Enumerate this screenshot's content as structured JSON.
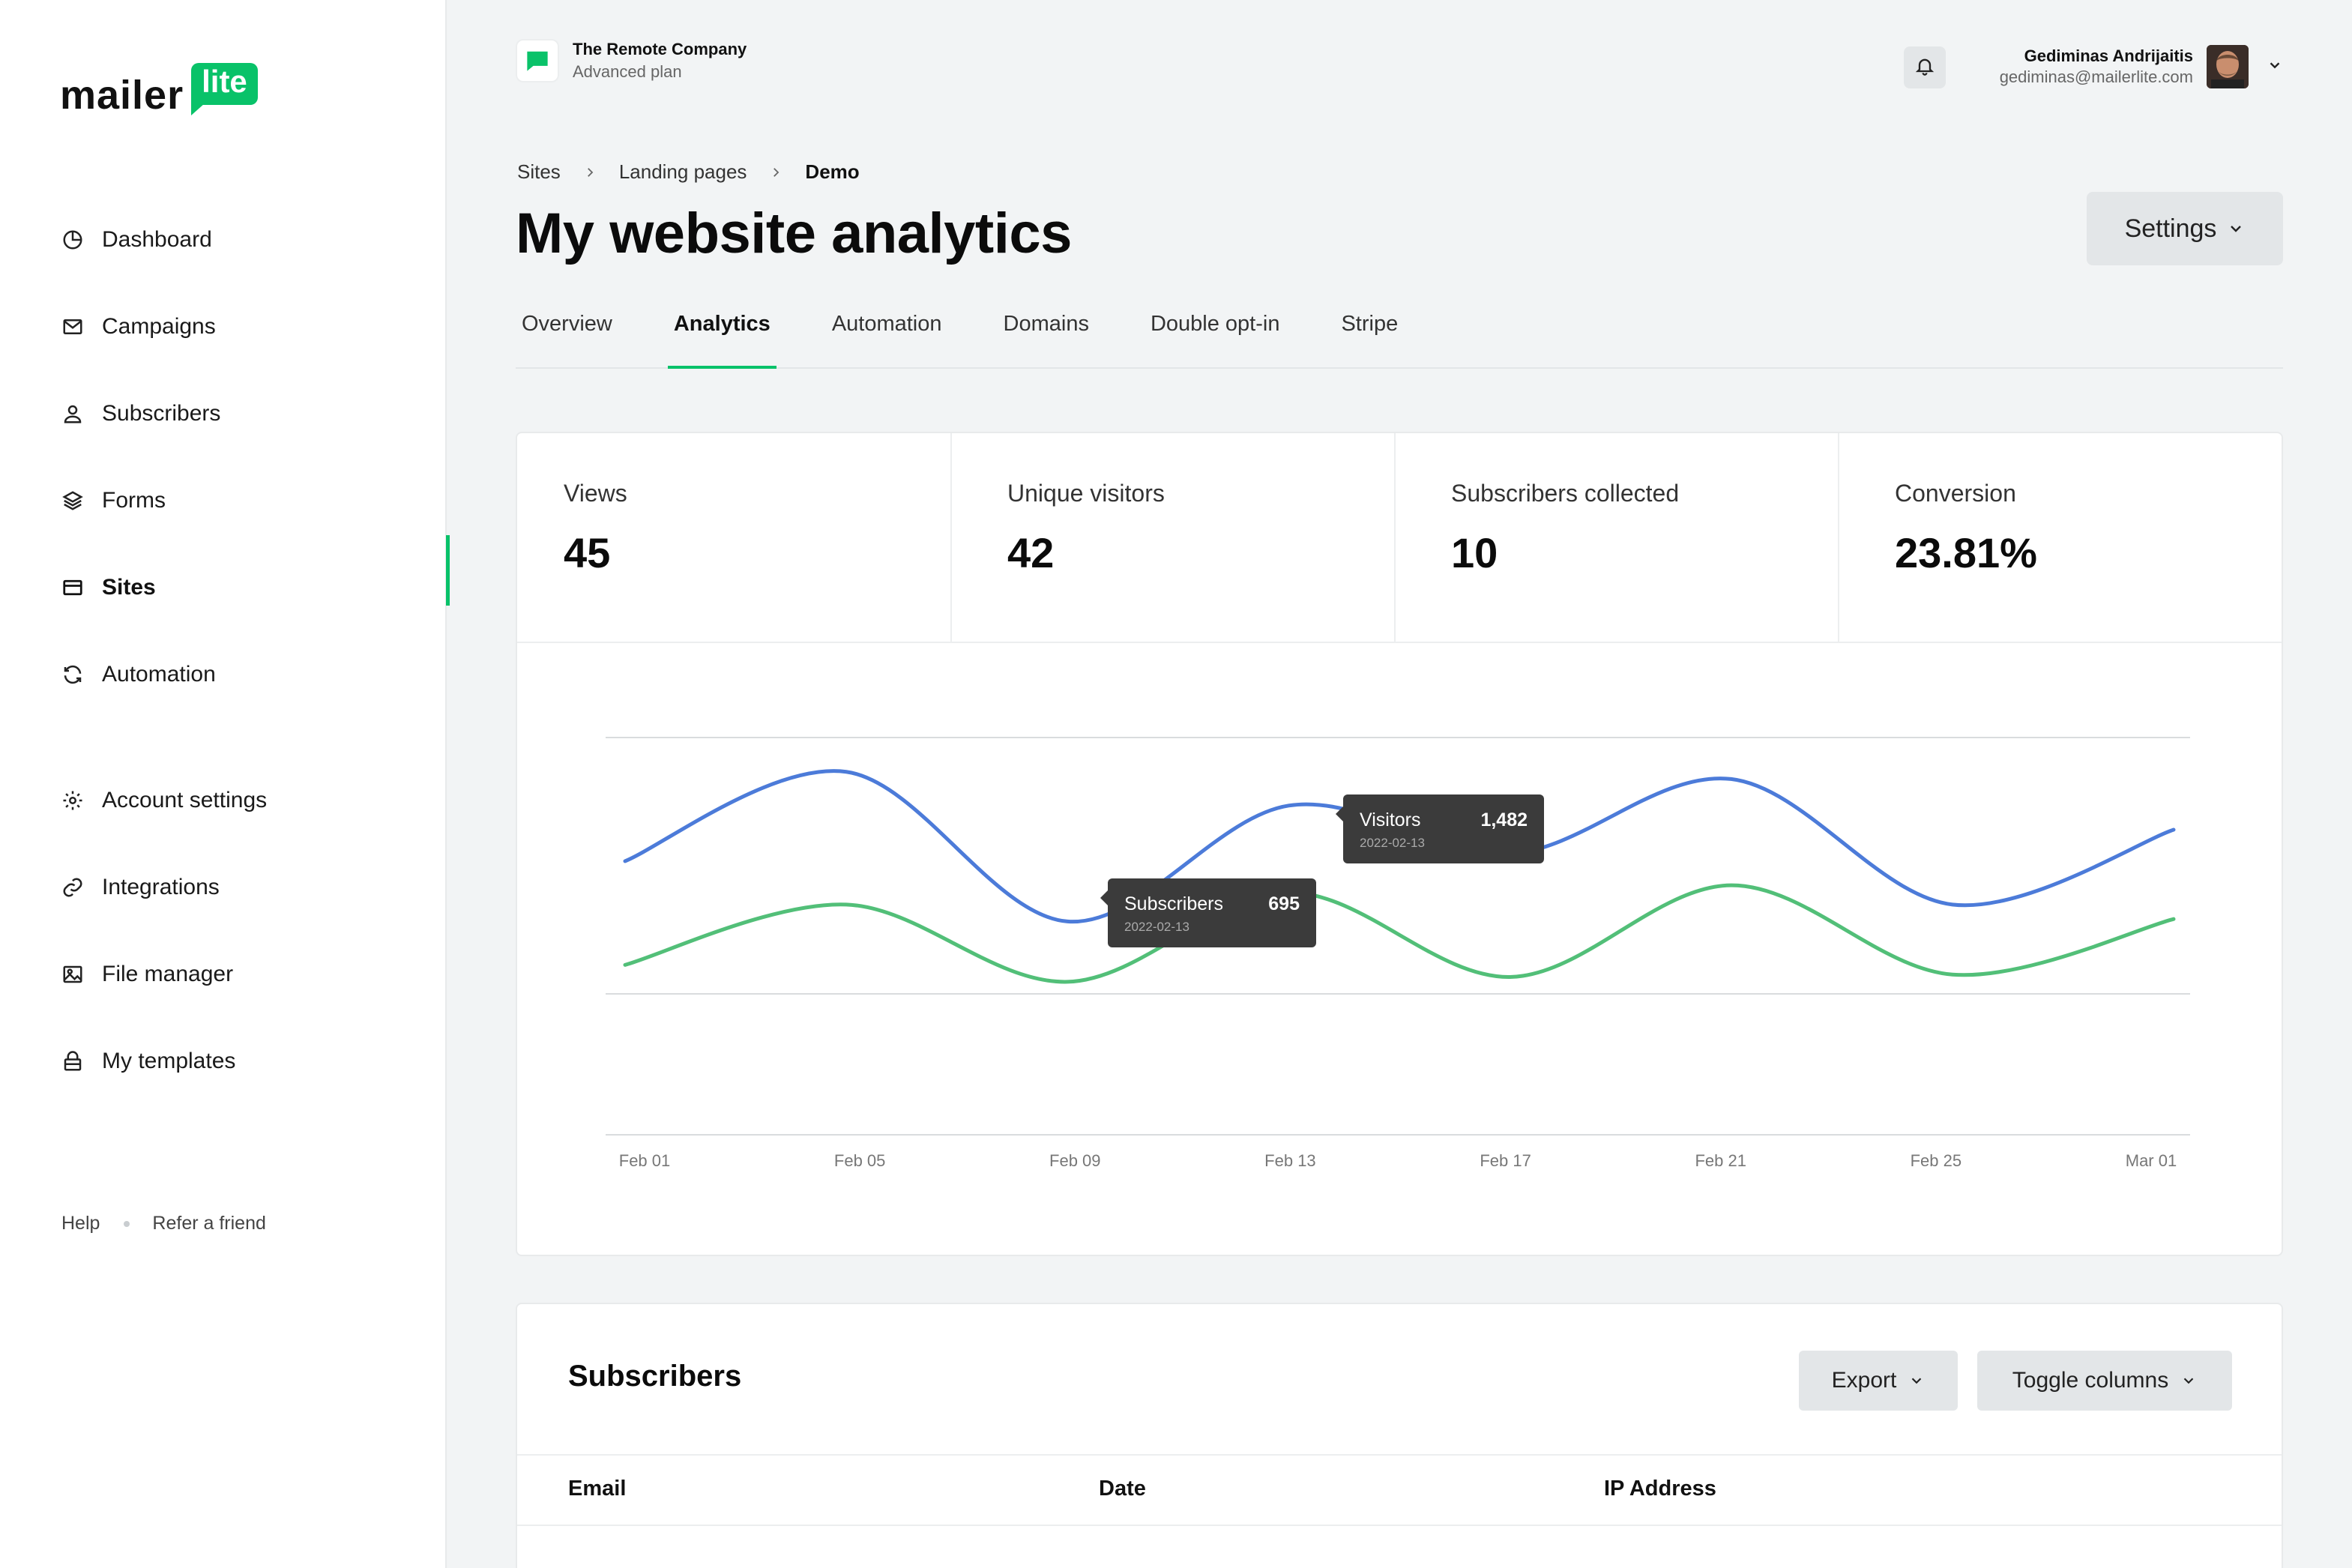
{
  "brand": {
    "word": "mailer",
    "badge": "lite",
    "accent": "#09c269"
  },
  "sidebar": {
    "items": [
      {
        "label": "Dashboard",
        "icon": "clock-icon"
      },
      {
        "label": "Campaigns",
        "icon": "mail-icon"
      },
      {
        "label": "Subscribers",
        "icon": "user-icon"
      },
      {
        "label": "Forms",
        "icon": "layers-icon"
      },
      {
        "label": "Sites",
        "icon": "browser-icon",
        "active": true
      },
      {
        "label": "Automation",
        "icon": "refresh-icon"
      }
    ],
    "items2": [
      {
        "label": "Account settings",
        "icon": "gear-icon"
      },
      {
        "label": "Integrations",
        "icon": "link-icon"
      },
      {
        "label": "File manager",
        "icon": "image-icon"
      },
      {
        "label": "My templates",
        "icon": "lock-icon"
      }
    ],
    "help": "Help",
    "refer": "Refer a friend"
  },
  "topbar": {
    "company": "The Remote Company",
    "plan": "Advanced plan",
    "user_name": "Gediminas Andrijaitis",
    "user_email": "gediminas@mailerlite.com"
  },
  "breadcrumb": {
    "a": "Sites",
    "b": "Landing pages",
    "c": "Demo"
  },
  "page_title": "My website analytics",
  "settings_label": "Settings",
  "tabs": [
    "Overview",
    "Analytics",
    "Automation",
    "Domains",
    "Double opt-in",
    "Stripe"
  ],
  "active_tab": "Analytics",
  "stats": [
    {
      "label": "Views",
      "value": "45"
    },
    {
      "label": "Unique visitors",
      "value": "42"
    },
    {
      "label": "Subscribers collected",
      "value": "10"
    },
    {
      "label": "Conversion",
      "value": "23.81%"
    }
  ],
  "chart_data": {
    "type": "line",
    "x_ticks": [
      "Feb 01",
      "Feb 05",
      "Feb 09",
      "Feb 13",
      "Feb 17",
      "Feb 21",
      "Feb 25",
      "Mar 01"
    ],
    "series": [
      {
        "name": "Visitors",
        "color": "#4c7bd9",
        "values": [
          0.55,
          0.92,
          0.3,
          0.78,
          0.58,
          0.89,
          0.37,
          0.68
        ]
      },
      {
        "name": "Subscribers",
        "color": "#52bf78",
        "values": [
          0.12,
          0.37,
          0.05,
          0.42,
          0.07,
          0.45,
          0.08,
          0.31
        ]
      }
    ],
    "tooltips": [
      {
        "series": "Visitors",
        "value": "1,482",
        "date": "2022-02-13"
      },
      {
        "series": "Subscribers",
        "value": "695",
        "date": "2022-02-13"
      }
    ]
  },
  "subscribers": {
    "title": "Subscribers",
    "export": "Export",
    "toggle": "Toggle columns",
    "columns": [
      "Email",
      "Date",
      "IP Address"
    ]
  }
}
